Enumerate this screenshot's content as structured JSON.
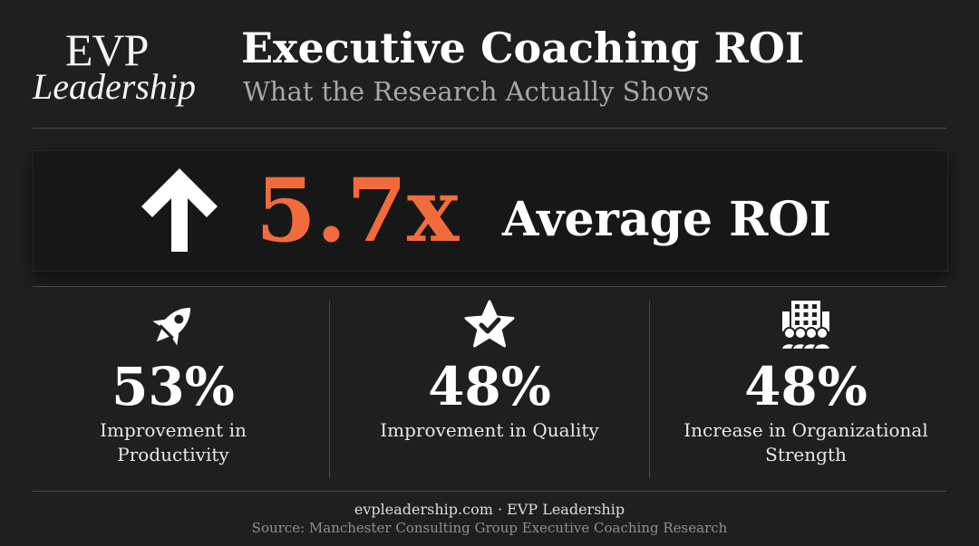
{
  "logo": {
    "line1": "EVP",
    "line2": "Leadership"
  },
  "header": {
    "title": "Executive Coaching ROI",
    "subtitle": "What the Research Actually Shows"
  },
  "hero": {
    "icon": "up-arrow-icon",
    "value": "5.7x",
    "label": "Average ROI"
  },
  "stats": [
    {
      "icon": "rocket-icon",
      "value": "53%",
      "label": "Improvement in Productivity"
    },
    {
      "icon": "star-check-icon",
      "value": "48%",
      "label": "Improvement in Quality"
    },
    {
      "icon": "building-team-icon",
      "value": "48%",
      "label": "Increase in Organizational Strength"
    }
  ],
  "footer": {
    "site": "evpleadership.com · EVP Leadership",
    "source": "Source: Manchester Consulting Group Executive Coaching Research"
  },
  "colors": {
    "background": "#1f1f1f",
    "accent": "#f26b3c",
    "text": "#ffffff",
    "muted": "#a7a7a7"
  }
}
